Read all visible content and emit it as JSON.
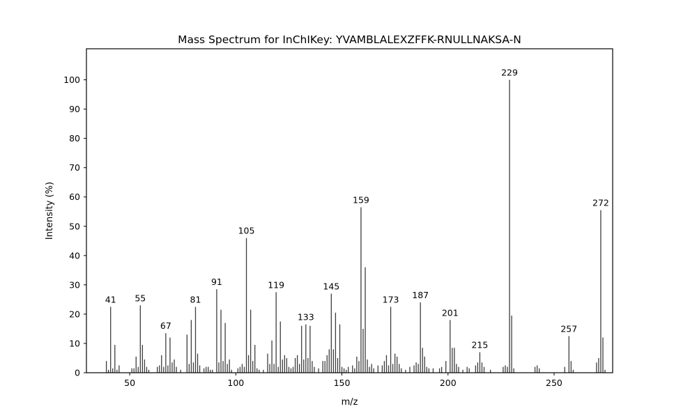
{
  "figure": {
    "title": "Mass Spectrum for InChIKey: YVAMBLALEXZFFK-RNULLNAKSA-N",
    "xlabel": "m/z",
    "ylabel": "Intensity (%)"
  },
  "chart_data": {
    "type": "bar",
    "subtype": "mass-spectrum-stem",
    "title": "Mass Spectrum for InChIKey: YVAMBLALEXZFFK-RNULLNAKSA-N",
    "xlabel": "m/z",
    "ylabel": "Intensity (%)",
    "xlim": [
      29.6,
      277.6
    ],
    "ylim": [
      0,
      110.6
    ],
    "x_ticks": [
      50,
      100,
      150,
      200,
      250
    ],
    "y_ticks": [
      0,
      10,
      20,
      30,
      40,
      50,
      60,
      70,
      80,
      90,
      100
    ],
    "grid": false,
    "legend": "none",
    "labeled_peaks": [
      41,
      55,
      67,
      81,
      91,
      105,
      119,
      133,
      145,
      159,
      173,
      187,
      201,
      215,
      229,
      257,
      272
    ],
    "peaks": [
      [
        39,
        4
      ],
      [
        40,
        1
      ],
      [
        41,
        22.5
      ],
      [
        42,
        1.5
      ],
      [
        43,
        9.5
      ],
      [
        44,
        1
      ],
      [
        45,
        2.5
      ],
      [
        51,
        1.5
      ],
      [
        52,
        1.5
      ],
      [
        53,
        5.5
      ],
      [
        54,
        2
      ],
      [
        55,
        23
      ],
      [
        56,
        9.5
      ],
      [
        57,
        4.5
      ],
      [
        58,
        2
      ],
      [
        59,
        1
      ],
      [
        63,
        2
      ],
      [
        64,
        2.5
      ],
      [
        65,
        6
      ],
      [
        66,
        2
      ],
      [
        67,
        13.5
      ],
      [
        68,
        2.5
      ],
      [
        69,
        12
      ],
      [
        70,
        3.5
      ],
      [
        71,
        4.5
      ],
      [
        72,
        2
      ],
      [
        74,
        1
      ],
      [
        77,
        13
      ],
      [
        78,
        3
      ],
      [
        79,
        18
      ],
      [
        80,
        3.5
      ],
      [
        81,
        22.5
      ],
      [
        82,
        6.5
      ],
      [
        83,
        2.5
      ],
      [
        85,
        1.5
      ],
      [
        86,
        2
      ],
      [
        87,
        2
      ],
      [
        88,
        1
      ],
      [
        89,
        1
      ],
      [
        91,
        28.5
      ],
      [
        92,
        3.5
      ],
      [
        93,
        21.5
      ],
      [
        94,
        4
      ],
      [
        95,
        17
      ],
      [
        96,
        3
      ],
      [
        97,
        4.5
      ],
      [
        98,
        1
      ],
      [
        101,
        1.5
      ],
      [
        102,
        2
      ],
      [
        103,
        3
      ],
      [
        104,
        2
      ],
      [
        105,
        46
      ],
      [
        106,
        6
      ],
      [
        107,
        21.5
      ],
      [
        108,
        4
      ],
      [
        109,
        9.5
      ],
      [
        110,
        1.5
      ],
      [
        111,
        1
      ],
      [
        113,
        1
      ],
      [
        115,
        6.5
      ],
      [
        116,
        3
      ],
      [
        117,
        11
      ],
      [
        118,
        3
      ],
      [
        119,
        27.5
      ],
      [
        120,
        2
      ],
      [
        121,
        17.5
      ],
      [
        122,
        4.5
      ],
      [
        123,
        6
      ],
      [
        124,
        5
      ],
      [
        125,
        2
      ],
      [
        126,
        1.5
      ],
      [
        127,
        2
      ],
      [
        128,
        5
      ],
      [
        129,
        6
      ],
      [
        130,
        3
      ],
      [
        131,
        16
      ],
      [
        132,
        4.5
      ],
      [
        133,
        16.5
      ],
      [
        134,
        5
      ],
      [
        135,
        16
      ],
      [
        136,
        4
      ],
      [
        137,
        2
      ],
      [
        139,
        1.5
      ],
      [
        141,
        4
      ],
      [
        142,
        4
      ],
      [
        143,
        6
      ],
      [
        144,
        8
      ],
      [
        145,
        27
      ],
      [
        146,
        8
      ],
      [
        147,
        20.5
      ],
      [
        148,
        5
      ],
      [
        149,
        16.5
      ],
      [
        150,
        2
      ],
      [
        151,
        1.5
      ],
      [
        152,
        1
      ],
      [
        153,
        2
      ],
      [
        155,
        2.5
      ],
      [
        156,
        1.5
      ],
      [
        157,
        5.5
      ],
      [
        158,
        4
      ],
      [
        159,
        56.5
      ],
      [
        160,
        15
      ],
      [
        161,
        36
      ],
      [
        162,
        4.5
      ],
      [
        163,
        2
      ],
      [
        164,
        3
      ],
      [
        165,
        1.5
      ],
      [
        167,
        2.5
      ],
      [
        169,
        2.5
      ],
      [
        170,
        4
      ],
      [
        171,
        6
      ],
      [
        172,
        2.5
      ],
      [
        173,
        22.5
      ],
      [
        174,
        3
      ],
      [
        175,
        6.5
      ],
      [
        176,
        5.5
      ],
      [
        177,
        3
      ],
      [
        178,
        1.5
      ],
      [
        180,
        1
      ],
      [
        182,
        2
      ],
      [
        184,
        2.5
      ],
      [
        185,
        3.5
      ],
      [
        186,
        3
      ],
      [
        187,
        24
      ],
      [
        188,
        8.5
      ],
      [
        189,
        5.5
      ],
      [
        190,
        2
      ],
      [
        191,
        1.5
      ],
      [
        193,
        1.5
      ],
      [
        196,
        1.5
      ],
      [
        197,
        2
      ],
      [
        199,
        4
      ],
      [
        201,
        18
      ],
      [
        202,
        8.5
      ],
      [
        203,
        8.5
      ],
      [
        204,
        3
      ],
      [
        205,
        2
      ],
      [
        207,
        1
      ],
      [
        209,
        2
      ],
      [
        210,
        1.5
      ],
      [
        213,
        2.5
      ],
      [
        214,
        3.5
      ],
      [
        215,
        7
      ],
      [
        216,
        3.5
      ],
      [
        217,
        2
      ],
      [
        220,
        1
      ],
      [
        226,
        2
      ],
      [
        227,
        2.5
      ],
      [
        228,
        2
      ],
      [
        229,
        100
      ],
      [
        230,
        19.5
      ],
      [
        231,
        1.5
      ],
      [
        241,
        2
      ],
      [
        242,
        2.5
      ],
      [
        243,
        1.5
      ],
      [
        255,
        2
      ],
      [
        257,
        12.5
      ],
      [
        258,
        4
      ],
      [
        259,
        1
      ],
      [
        270,
        3.5
      ],
      [
        271,
        5
      ],
      [
        272,
        55.5
      ],
      [
        273,
        12
      ],
      [
        274,
        1
      ]
    ],
    "colors": {
      "bar": "#3d3d3d",
      "axis": "#000000",
      "background": "#ffffff",
      "text": "#000000"
    }
  }
}
